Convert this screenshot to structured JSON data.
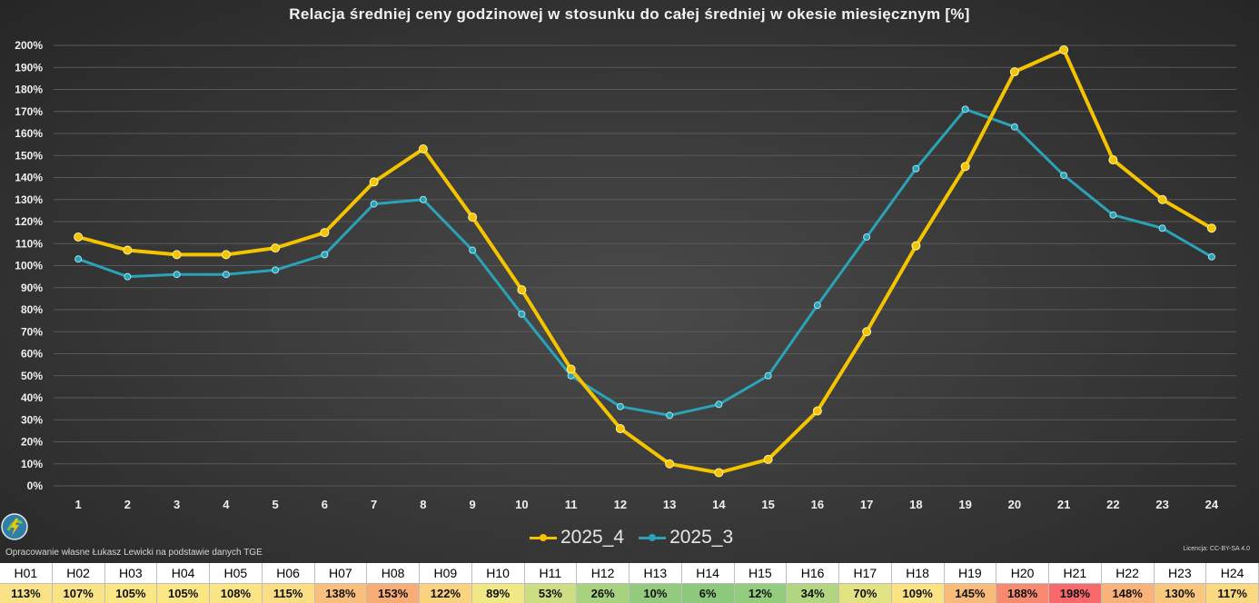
{
  "chart_data": {
    "type": "line",
    "title": "Relacja średniej ceny godzinowej w stosunku do całej średniej w okesie miesięcznym [%]",
    "categories": [
      "1",
      "2",
      "3",
      "4",
      "5",
      "6",
      "7",
      "8",
      "9",
      "10",
      "11",
      "12",
      "13",
      "14",
      "15",
      "16",
      "17",
      "18",
      "19",
      "20",
      "21",
      "22",
      "23",
      "24"
    ],
    "y_ticks": [
      "0%",
      "10%",
      "20%",
      "30%",
      "40%",
      "50%",
      "60%",
      "70%",
      "80%",
      "90%",
      "100%",
      "110%",
      "120%",
      "130%",
      "140%",
      "150%",
      "160%",
      "170%",
      "180%",
      "190%",
      "200%"
    ],
    "ylim": [
      0,
      200
    ],
    "grid": true,
    "legend_position": "bottom",
    "series": [
      {
        "name": "2025_4",
        "color": "#f5c400",
        "values": [
          113,
          107,
          105,
          105,
          108,
          115,
          138,
          153,
          122,
          89,
          53,
          26,
          10,
          6,
          12,
          34,
          70,
          109,
          145,
          188,
          198,
          148,
          130,
          117
        ]
      },
      {
        "name": "2025_3",
        "color": "#2aa3b8",
        "values": [
          103,
          95,
          96,
          96,
          98,
          105,
          128,
          130,
          107,
          78,
          50,
          36,
          32,
          37,
          50,
          82,
          113,
          144,
          171,
          163,
          141,
          123,
          117,
          104
        ]
      }
    ]
  },
  "footer": {
    "credit": "Opracowanie własne Łukasz Lewicki na podstawie danych TGE",
    "license": "Licencja: CC-BY-SA 4.0"
  },
  "table": {
    "headers": [
      "H01",
      "H02",
      "H03",
      "H04",
      "H05",
      "H06",
      "H07",
      "H08",
      "H09",
      "H10",
      "H11",
      "H12",
      "H13",
      "H14",
      "H15",
      "H16",
      "H17",
      "H18",
      "H19",
      "H20",
      "H21",
      "H22",
      "H23",
      "H24"
    ],
    "values": [
      "113%",
      "107%",
      "105%",
      "105%",
      "108%",
      "115%",
      "138%",
      "153%",
      "122%",
      "89%",
      "53%",
      "26%",
      "10%",
      "6%",
      "12%",
      "34%",
      "70%",
      "109%",
      "145%",
      "188%",
      "198%",
      "148%",
      "130%",
      "117%"
    ],
    "colors": [
      "#fbe286",
      "#fae384",
      "#fbe684",
      "#fbe684",
      "#fbe485",
      "#fbdd83",
      "#fac07b",
      "#f8ad77",
      "#fbd27f",
      "#f0e785",
      "#cddd82",
      "#a9d27f",
      "#92cb7d",
      "#8cc97d",
      "#94cc7d",
      "#b1d580",
      "#e2e283",
      "#fbe384",
      "#f9bb7a",
      "#f88a70",
      "#f8696b",
      "#f9b378",
      "#fac87d",
      "#fbd981"
    ]
  }
}
